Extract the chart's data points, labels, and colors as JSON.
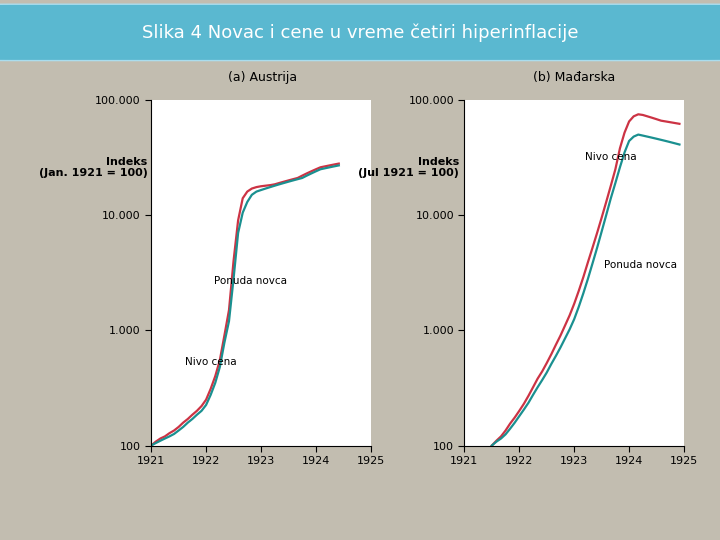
{
  "title": "Slika 4 Novac i cene u vreme četiri hiperinflacije",
  "title_bg": "#5ab8d0",
  "bg_color": "#c2bdb0",
  "panel_bg": "#ffffff",
  "subtitle_a": "(a) Austrija",
  "subtitle_b": "(b) Mađarska",
  "ylabel_a": "Indeks\n(Jan. 1921 = 100)",
  "ylabel_b": "Indeks\n(Jul 1921 = 100)",
  "color_nivo": "#cc3344",
  "color_ponuda": "#1a9090",
  "label_nivo": "Nivo cena",
  "label_ponuda": "Ponuda novca",
  "austria_years": [
    1921.0,
    1921.083,
    1921.167,
    1921.25,
    1921.333,
    1921.417,
    1921.5,
    1921.583,
    1921.667,
    1921.75,
    1921.833,
    1921.917,
    1922.0,
    1922.083,
    1922.167,
    1922.25,
    1922.333,
    1922.417,
    1922.5,
    1922.583,
    1922.667,
    1922.75,
    1922.833,
    1922.917,
    1923.0,
    1923.083,
    1923.167,
    1923.25,
    1923.333,
    1923.417,
    1923.5,
    1923.583,
    1923.667,
    1923.75,
    1923.833,
    1923.917,
    1924.0,
    1924.083,
    1924.167,
    1924.25,
    1924.333,
    1924.417
  ],
  "austria_nivo_cena": [
    100,
    108,
    115,
    120,
    128,
    135,
    145,
    158,
    170,
    185,
    200,
    220,
    250,
    310,
    400,
    550,
    900,
    1500,
    4000,
    9000,
    14000,
    16000,
    17000,
    17500,
    17800,
    18000,
    18200,
    18500,
    19000,
    19500,
    20000,
    20500,
    21000,
    22000,
    23000,
    24000,
    25000,
    26000,
    26500,
    27000,
    27500,
    28000
  ],
  "austria_ponuda_novca": [
    100,
    105,
    110,
    115,
    120,
    126,
    135,
    145,
    158,
    170,
    185,
    200,
    225,
    275,
    350,
    480,
    780,
    1200,
    2800,
    7000,
    10500,
    13000,
    15000,
    16000,
    16500,
    17000,
    17500,
    18000,
    18500,
    19000,
    19500,
    20000,
    20500,
    21000,
    22000,
    23000,
    24000,
    25000,
    25500,
    26000,
    26500,
    27000
  ],
  "hungary_years": [
    1921.5,
    1921.583,
    1921.667,
    1921.75,
    1921.833,
    1921.917,
    1922.0,
    1922.083,
    1922.167,
    1922.25,
    1922.333,
    1922.417,
    1922.5,
    1922.583,
    1922.667,
    1922.75,
    1922.833,
    1922.917,
    1923.0,
    1923.083,
    1923.167,
    1923.25,
    1923.333,
    1923.417,
    1923.5,
    1923.583,
    1923.667,
    1923.75,
    1923.833,
    1923.917,
    1924.0,
    1924.083,
    1924.167,
    1924.25,
    1924.333,
    1924.417,
    1924.5,
    1924.583,
    1924.667,
    1924.75,
    1924.833,
    1924.917
  ],
  "hungary_nivo_cena": [
    100,
    110,
    120,
    135,
    155,
    175,
    200,
    230,
    270,
    320,
    380,
    440,
    520,
    620,
    750,
    900,
    1100,
    1350,
    1700,
    2200,
    2900,
    3900,
    5200,
    7000,
    9500,
    13000,
    18000,
    25000,
    38000,
    52000,
    65000,
    72000,
    75000,
    74000,
    72000,
    70000,
    68000,
    66000,
    65000,
    64000,
    63000,
    62000
  ],
  "hungary_ponuda_novca": [
    100,
    108,
    115,
    125,
    140,
    158,
    180,
    205,
    235,
    275,
    320,
    370,
    430,
    510,
    600,
    710,
    850,
    1020,
    1250,
    1600,
    2100,
    2800,
    3800,
    5200,
    7200,
    10000,
    14000,
    19000,
    26000,
    35000,
    44000,
    48000,
    50000,
    49000,
    48000,
    47000,
    46000,
    45000,
    44000,
    43000,
    42000,
    41000
  ],
  "yticks": [
    100,
    1000,
    10000,
    100000
  ],
  "ytick_labels": [
    "100",
    "1.000",
    "10.000",
    "100.000"
  ],
  "xticks": [
    1921,
    1922,
    1923,
    1924,
    1925
  ],
  "xlim": [
    1921,
    1925
  ],
  "ylim_log": [
    100,
    100000
  ]
}
